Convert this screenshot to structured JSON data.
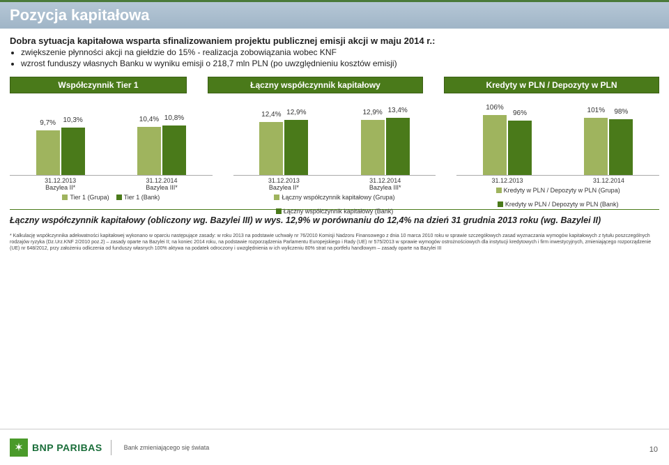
{
  "header": {
    "title": "Pozycja kapitałowa"
  },
  "sub": {
    "title": "Dobra sytuacja kapitałowa wsparta sfinalizowaniem projektu publicznej emisji akcji w maju 2014 r.:",
    "b1": "zwiększenie płynności akcji na giełdzie do 15% - realizacja zobowiązania wobec KNF",
    "b2": "wzrost funduszy własnych Banku w wyniku emisji o 218,7 mln PLN (po uwzględnieniu kosztów emisji)"
  },
  "pills": {
    "p1": "Współczynnik Tier 1",
    "p2": "Łączny współczynnik kapitałowy",
    "p3": "Kredyty w PLN / Depozyty w PLN"
  },
  "chart1": {
    "bars": [
      {
        "v1": "9,7%",
        "h1": 64,
        "v2": "10,3%",
        "h2": 68
      },
      {
        "v1": "10,4%",
        "h1": 69,
        "v2": "10,8%",
        "h2": 71
      }
    ],
    "x1a": "31.12.2013",
    "x1b": "Bazylea II*",
    "x2a": "31.12.2014",
    "x2b": "Bazylea III*",
    "leg1": "Tier 1 (Grupa)",
    "leg2": "Tier 1 (Bank)"
  },
  "chart2": {
    "bars": [
      {
        "v1": "12,4%",
        "h1": 76,
        "v2": "12,9%",
        "h2": 79
      },
      {
        "v1": "12,9%",
        "h1": 79,
        "v2": "13,4%",
        "h2": 82
      }
    ],
    "x1a": "31.12.2013",
    "x1b": "Bazylea II*",
    "x2a": "31.12.2014",
    "x2b": "Bazylea III*",
    "leg1": "Łączny współczynnik kapitałowy (Grupa)",
    "leg2": "Łączny współczynnik kapitałowy (Bank)"
  },
  "chart3": {
    "bars": [
      {
        "v1": "106%",
        "h1": 86,
        "v2": "96%",
        "h2": 78
      },
      {
        "v1": "101%",
        "h1": 82,
        "v2": "98%",
        "h2": 80
      }
    ],
    "x1a": "31.12.2013",
    "x2a": "31.12.2014",
    "leg1": "Kredyty w PLN / Depozyty w PLN (Grupa)",
    "leg2": "Kredyty w PLN / Depozyty w PLN (Bank)"
  },
  "summary": "Łączny współczynnik kapitałowy (obliczony wg. Bazylei III) w wys. 12,9% w porównaniu do 12,4% na dzień 31 grudnia 2013 roku (wg. Bazylei II)",
  "footnote": "* Kalkulację współczynnika adekwatności kapitałowej wykonano w oparciu następujące zasady: w roku 2013 na podstawie uchwały nr 76/2010 Komisji Nadzoru Finansowego z dnia 10 marca 2010 roku w sprawie szczegółowych zasad wyznaczania wymogów kapitałowych z tytułu poszczególnych rodzajów ryzyka (Dz.Urz.KNF 2/2010 poz.2) – zasady oparte na Bazylei II; na koniec 2014 roku, na podstawie rozporządzenia Parlamentu Europejskiego i Rady (UE) nr 575/2013 w sprawie wymogów ostrożnościowych dla instytucji kredytowych i firm inwestycyjnych, zmieniającego rozporządzenie (UE) nr 648/2012, przy założeniu odliczenia od funduszy własnych 100% aktywa na podatek odroczony i uwzględnienia w ich wyliczeniu 80% strat na portfelu handlowym – zasady oparte na Bazylei III",
  "logo": {
    "brand": "BNP PARIBAS",
    "tagline": "Bank zmieniającego się świata"
  },
  "page": "10",
  "colors": {
    "light": "#9fb45e",
    "dark": "#4a7a1a"
  }
}
